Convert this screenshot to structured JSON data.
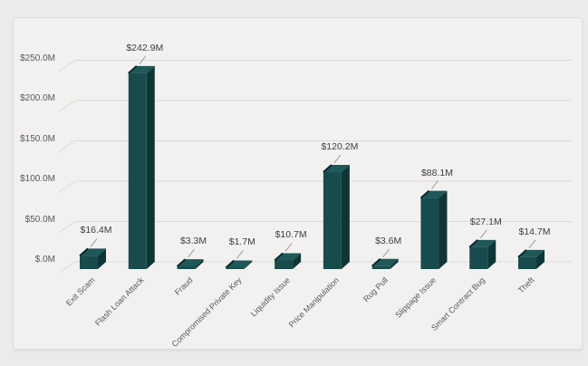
{
  "window": {
    "background_color": "#ECEBE9"
  },
  "chart_card": {
    "background_color": "#F2F1F0",
    "border_color": "#DDDCDA"
  },
  "chart_data": {
    "type": "bar",
    "style": "3d",
    "title": "",
    "xlabel": "",
    "ylabel": "",
    "grid": true,
    "legend": false,
    "categories": [
      "Exit Scam",
      "Flash Loan Attack",
      "Fraud",
      "Compromised Private Key",
      "Liquidity Issue",
      "Price Manipulation",
      "Rug Pull",
      "Slippage Issue",
      "Smart Contract Bug",
      "Theft"
    ],
    "values": [
      16.4,
      242.9,
      3.3,
      1.7,
      10.7,
      120.2,
      3.6,
      88.1,
      27.1,
      14.7
    ],
    "value_labels": [
      "$16.4M",
      "$242.9M",
      "$3.3M",
      "$1.7M",
      "$10.7M",
      "$120.2M",
      "$3.6M",
      "$88.1M",
      "$27.1M",
      "$14.7M"
    ],
    "y_tick_values": [
      0,
      50,
      100,
      150,
      200,
      250
    ],
    "y_tick_labels": [
      "$.0M",
      "$50.0M",
      "$100.0M",
      "$150.0M",
      "$200.0M",
      "$250.0M"
    ],
    "ylim": [
      0,
      250
    ],
    "colors": {
      "bar_front": "#184B4C",
      "bar_top": "#1E5859",
      "bar_side": "#0E3637",
      "bar_bevel": "#0A2829",
      "gridline": "#DCDAD8",
      "leader_line": "#9E9D9B",
      "value_label_text": "#3E3E3E",
      "axis_label_text": "#595959"
    }
  }
}
